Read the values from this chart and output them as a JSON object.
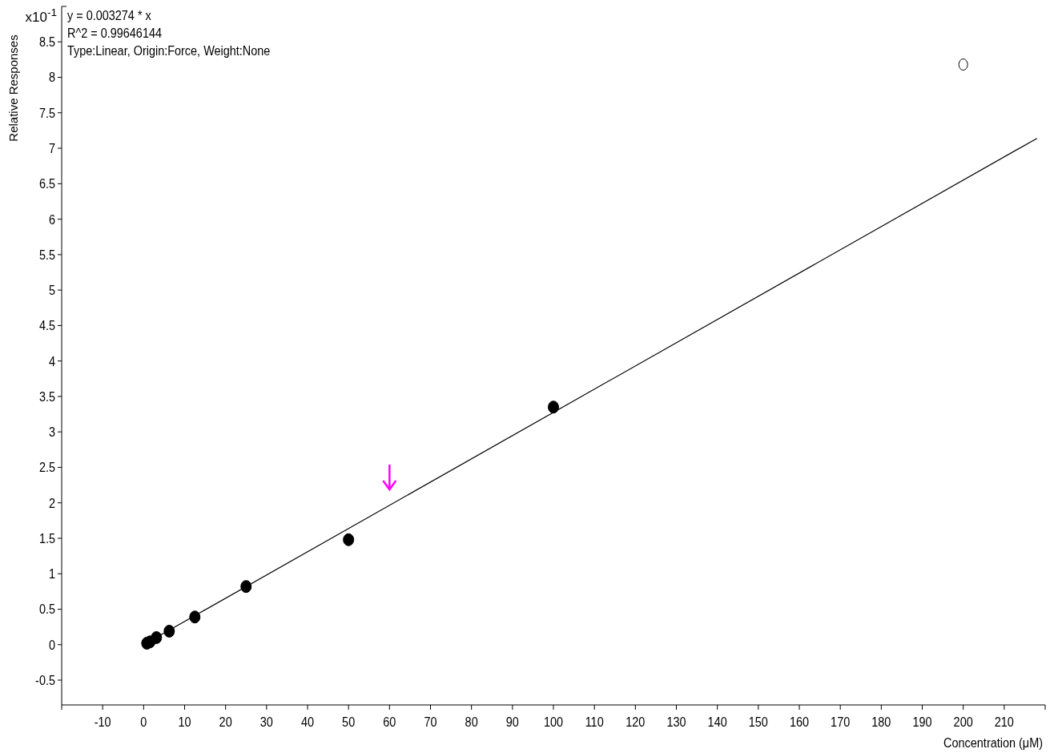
{
  "chart_data": {
    "type": "scatter",
    "xlabel": "Concentration (μM)",
    "ylabel": "Relative Responses",
    "annotations": [
      "x10$^{-1}$",
      "y = 0.003274 * x",
      "R^2 = 0.99646144",
      "Type:Linear, Origin:Force, Weight:None"
    ],
    "series": [
      {
        "color": "#000000",
        "marker": "circle",
        "x": [
          0.78,
          1.56,
          3.125,
          6.25,
          12.5,
          25,
          50,
          100
        ],
        "values": [
          0.02,
          0.04,
          0.1,
          0.19,
          0.39,
          0.82,
          1.48,
          3.35
        ]
      },
      {
        "color": "#000000",
        "marker": "circle",
        "x": [
          200
        ],
        "values": [
          8.18
        ]
      },
      {
        "type": "line",
        "color": "#000000",
        "x": [
          0,
          218
        ],
        "values": [
          0,
          7.14
        ]
      }
    ],
    "line_style": "solid",
    "grid": false,
    "xlim": [
      -20,
      220
    ],
    "ylim": [
      -0.85,
      9
    ],
    "xticks": [
      {
        "value": -20,
        "label": null
      },
      -10,
      0,
      10,
      20,
      30,
      40,
      50,
      60,
      70,
      80,
      90,
      100,
      110,
      120,
      130,
      140,
      150,
      160,
      170,
      180,
      190,
      200,
      210
    ],
    "yticks": [
      -0.5,
      0,
      0.5,
      1,
      1.5,
      2,
      2.5,
      3,
      3.5,
      4,
      4.5,
      5,
      5.5,
      6,
      6.5,
      7,
      7.5,
      8,
      8.5
    ]
  }
}
